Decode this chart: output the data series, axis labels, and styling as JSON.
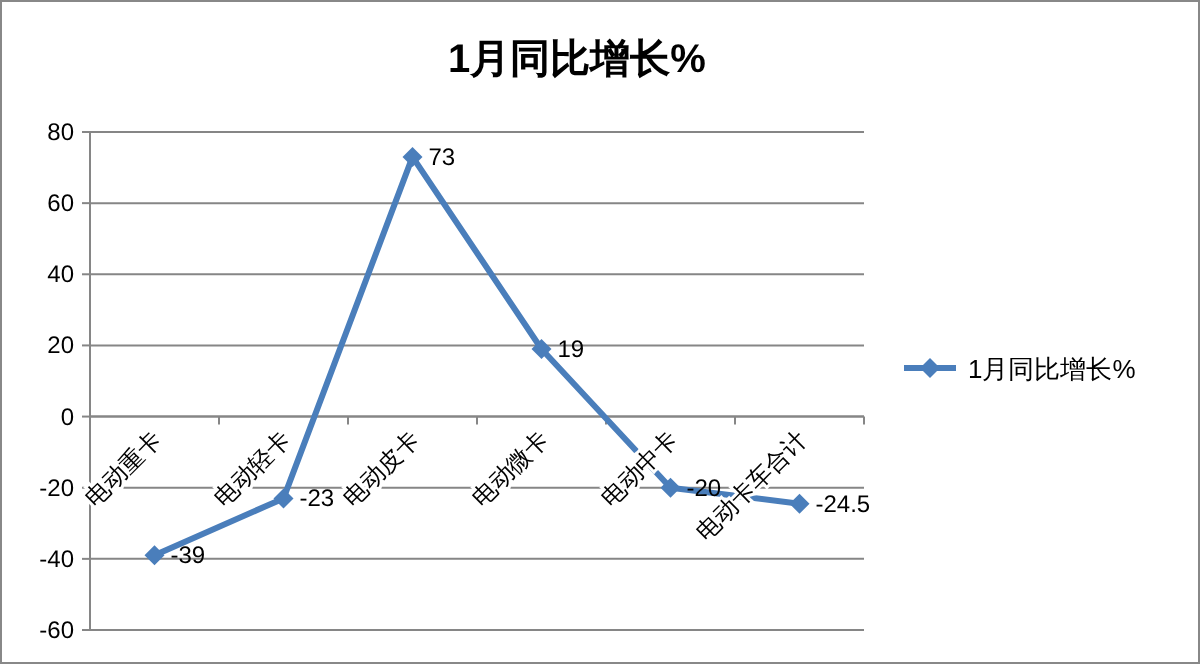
{
  "chart_data": {
    "type": "line",
    "title": "1月同比增长%",
    "categories": [
      "电动重卡",
      "电动轻卡",
      "电动皮卡",
      "电动微卡",
      "电动中卡",
      "电动卡车合计"
    ],
    "series": [
      {
        "name": "1月同比增长%",
        "color": "#4a7ebb",
        "values": [
          -39,
          -23,
          73,
          19,
          -20,
          -24.5
        ]
      }
    ],
    "ylim": [
      -60,
      80
    ],
    "yticks": [
      -60,
      -40,
      -20,
      0,
      20,
      40,
      60,
      80
    ],
    "grid": "y",
    "legend": "right",
    "marker": "diamond",
    "line_style": "solid",
    "data_labels": true
  }
}
